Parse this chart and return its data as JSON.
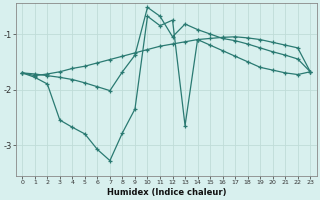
{
  "xlabel": "Humidex (Indice chaleur)",
  "bg_color": "#d8f0ee",
  "line_color": "#2a7a72",
  "grid_color": "#c0dcd8",
  "xlim": [
    -0.5,
    23.5
  ],
  "ylim": [
    -3.55,
    -0.45
  ],
  "yticks": [
    -3,
    -2,
    -1
  ],
  "xticks": [
    0,
    1,
    2,
    3,
    4,
    5,
    6,
    7,
    8,
    9,
    10,
    11,
    12,
    13,
    14,
    15,
    16,
    17,
    18,
    19,
    20,
    21,
    22,
    23
  ],
  "line1_x": [
    0,
    1,
    2,
    3,
    4,
    5,
    6,
    7,
    8,
    9,
    10,
    11,
    12,
    13,
    14,
    15,
    16,
    17,
    18,
    19,
    20,
    21,
    22,
    23
  ],
  "line1_y": [
    -1.7,
    -1.75,
    -1.72,
    -1.68,
    -1.62,
    -1.58,
    -1.52,
    -1.46,
    -1.4,
    -1.34,
    -1.28,
    -1.22,
    -1.18,
    -1.14,
    -1.1,
    -1.08,
    -1.06,
    -1.05,
    -1.07,
    -1.1,
    -1.15,
    -1.2,
    -1.25,
    -1.68
  ],
  "line2_x": [
    0,
    1,
    2,
    3,
    4,
    5,
    6,
    7,
    8,
    9,
    10,
    11,
    12,
    13,
    14,
    15,
    16,
    17,
    18,
    19,
    20,
    21,
    22,
    23
  ],
  "line2_y": [
    -1.7,
    -1.78,
    -1.9,
    -2.55,
    -2.68,
    -2.8,
    -3.08,
    -3.28,
    -2.78,
    -2.35,
    -0.68,
    -0.85,
    -0.75,
    -2.65,
    -1.1,
    -1.2,
    -1.3,
    -1.4,
    -1.5,
    -1.6,
    -1.65,
    -1.7,
    -1.73,
    -1.68
  ],
  "line3_x": [
    0,
    1,
    2,
    3,
    4,
    5,
    6,
    7,
    8,
    9,
    10,
    11,
    12,
    13,
    14,
    15,
    16,
    17,
    18,
    19,
    20,
    21,
    22,
    23
  ],
  "line3_y": [
    -1.7,
    -1.72,
    -1.75,
    -1.78,
    -1.82,
    -1.88,
    -1.95,
    -2.02,
    -1.68,
    -1.38,
    -0.52,
    -0.68,
    -1.05,
    -0.82,
    -0.92,
    -1.0,
    -1.08,
    -1.12,
    -1.18,
    -1.25,
    -1.32,
    -1.38,
    -1.45,
    -1.68
  ]
}
